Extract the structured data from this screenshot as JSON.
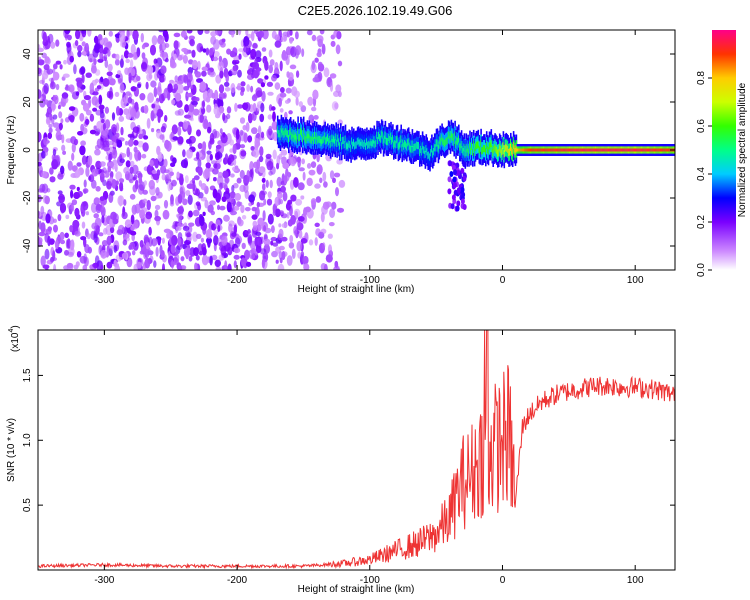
{
  "title": "C2E5.2026.102.19.49.G06",
  "chart_data": [
    {
      "type": "heatmap",
      "panel": "top",
      "title": "C2E5.2026.102.19.49.G06",
      "xlabel": "Height of straight line (km)",
      "ylabel": "Frequency (Hz)",
      "xlim": [
        -350,
        130
      ],
      "ylim": [
        -50,
        50
      ],
      "x_ticks": [
        -300,
        -200,
        -100,
        0,
        100
      ],
      "y_ticks": [
        -40,
        -20,
        0,
        20,
        40
      ],
      "colorbar": {
        "label": "Normalized spectral amplitude",
        "range": [
          0.0,
          1.0
        ],
        "ticks": [
          "0.0",
          "0.2",
          "0.4",
          "0.6",
          "0.8"
        ],
        "tick_values": [
          0.0,
          0.2,
          0.4,
          0.6,
          0.8
        ]
      },
      "signal_trace": {
        "x": [
          -170,
          -150,
          -130,
          -110,
          -90,
          -70,
          -55,
          -45,
          -38,
          -30,
          -20,
          -10,
          0,
          20,
          60,
          100,
          130
        ],
        "frequency": [
          7,
          6,
          4,
          2,
          5,
          2,
          -1,
          4,
          6,
          0,
          1,
          1,
          0,
          0,
          0,
          0,
          0
        ],
        "amplitude": [
          0.5,
          0.55,
          0.5,
          0.45,
          0.5,
          0.5,
          0.45,
          0.55,
          0.55,
          0.5,
          0.6,
          0.6,
          0.7,
          0.9,
          0.95,
          0.95,
          0.9
        ]
      }
    },
    {
      "type": "line",
      "panel": "bottom",
      "xlabel": "Height of straight line (km)",
      "ylabel": "SNR (10 * v/v)",
      "y_multiplier": "(x10",
      "y_multiplier_exp": "4",
      "y_multiplier_close": ")",
      "xlim": [
        -350,
        130
      ],
      "ylim": [
        0,
        1.85
      ],
      "x_ticks": [
        -300,
        -200,
        -100,
        0,
        100
      ],
      "y_ticks": [
        0.5,
        1.0,
        1.5
      ],
      "y_tick_labels": [
        "0.5",
        "1.0",
        "1.5"
      ],
      "color": "#ee3333",
      "x": [
        -350,
        -300,
        -250,
        -200,
        -150,
        -120,
        -100,
        -80,
        -60,
        -50,
        -40,
        -35,
        -30,
        -25,
        -20,
        -15,
        -12,
        -10,
        -5,
        0,
        5,
        10,
        15,
        20,
        30,
        40,
        50,
        60,
        70,
        80,
        90,
        100,
        110,
        120,
        130
      ],
      "y": [
        0.03,
        0.04,
        0.03,
        0.03,
        0.03,
        0.05,
        0.08,
        0.15,
        0.22,
        0.28,
        0.4,
        0.55,
        0.68,
        0.72,
        0.8,
        0.9,
        0.85,
        0.9,
        0.95,
        1.0,
        1.05,
        0.55,
        1.1,
        1.2,
        1.3,
        1.35,
        1.38,
        1.4,
        1.42,
        1.42,
        1.41,
        1.41,
        1.4,
        1.38,
        1.35
      ]
    }
  ]
}
